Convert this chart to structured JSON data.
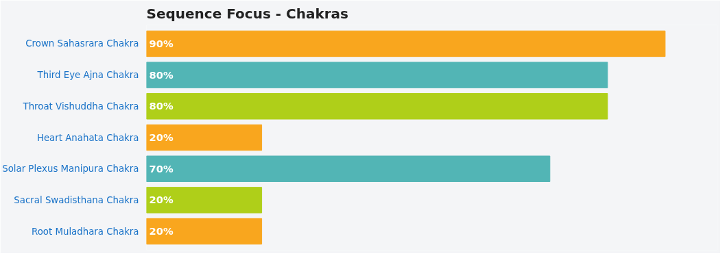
{
  "chart_data": {
    "type": "bar",
    "orientation": "horizontal",
    "title": "Sequence Focus - Chakras",
    "categories": [
      "Crown Sahasrara Chakra",
      "Third Eye Ajna Chakra",
      "Throat Vishuddha Chakra",
      "Heart Anahata Chakra",
      "Solar Plexus Manipura Chakra",
      "Sacral Swadisthana Chakra",
      "Root Muladhara Chakra"
    ],
    "values": [
      90,
      80,
      80,
      20,
      70,
      20,
      20
    ],
    "value_labels": [
      "90%",
      "80%",
      "80%",
      "20%",
      "70%",
      "20%",
      "20%"
    ],
    "colors": [
      "#f9a61e",
      "#52b5b5",
      "#afcf19",
      "#f9a61e",
      "#52b5b5",
      "#afcf19",
      "#f9a61e"
    ],
    "grid": false
  }
}
